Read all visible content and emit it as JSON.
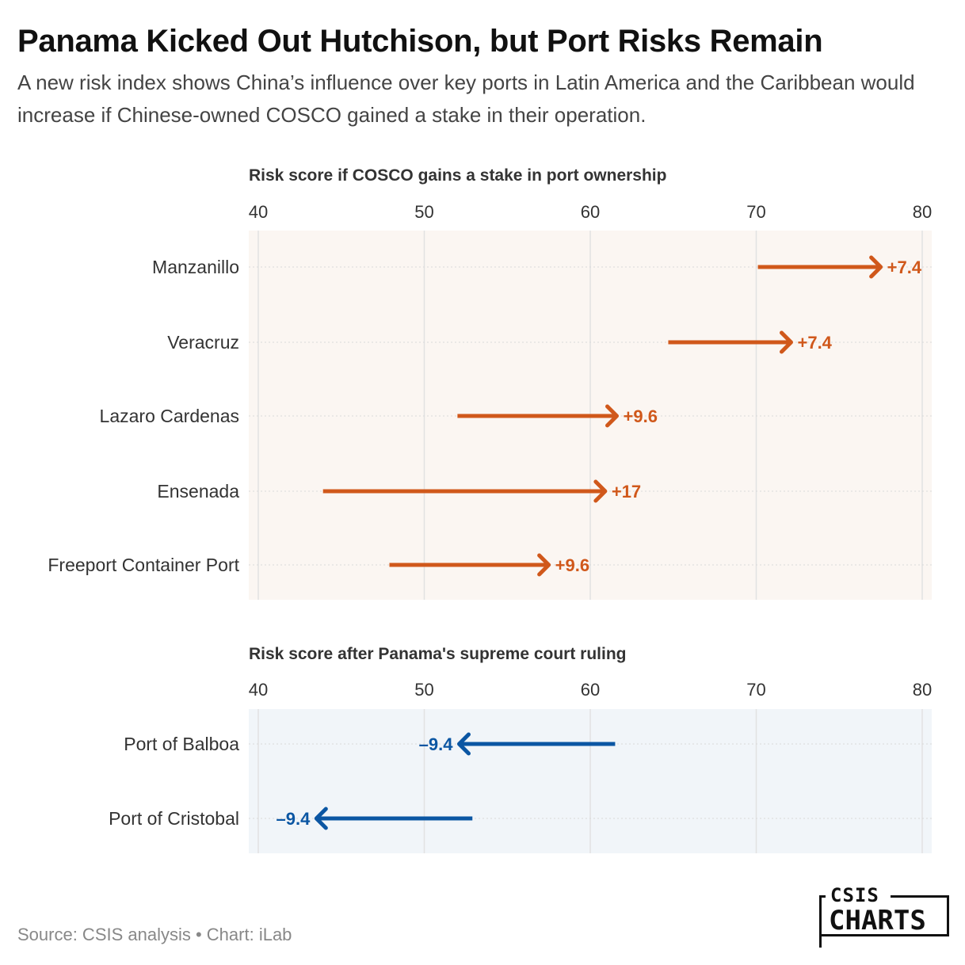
{
  "header": {
    "title": "Panama Kicked Out Hutchison, but Port Risks Remain",
    "subtitle": "A new risk index shows China’s influence over key ports in Latin America and the Caribbean would increase if Chinese-owned COSCO gained a stake in their operation."
  },
  "footer": {
    "source": "Source: CSIS analysis • Chart: iLab",
    "logo_top": "CSIS",
    "logo_bottom": "CHARTS"
  },
  "colors": {
    "increase": "#d0581b",
    "decrease": "#0b56a3",
    "panel1_bg": "#fbf6f2",
    "panel2_bg": "#f1f5f9"
  },
  "chart_data": [
    {
      "type": "arrow",
      "title": "Risk score if COSCO gains a stake in port ownership",
      "xlim": [
        40,
        80
      ],
      "ticks": [
        40,
        50,
        60,
        70,
        80
      ],
      "grid": true,
      "rows": [
        {
          "label": "Manzanillo",
          "from": 70.1,
          "to": 77.5,
          "change": "+7.4"
        },
        {
          "label": "Veracruz",
          "from": 64.7,
          "to": 72.1,
          "change": "+7.4"
        },
        {
          "label": "Lazaro Cardenas",
          "from": 52.0,
          "to": 61.6,
          "change": "+9.6"
        },
        {
          "label": "Ensenada",
          "from": 43.9,
          "to": 60.9,
          "change": "+17"
        },
        {
          "label": "Freeport Container Port",
          "from": 47.9,
          "to": 57.5,
          "change": "+9.6"
        }
      ]
    },
    {
      "type": "arrow",
      "title": "Risk score after Panama's supreme court ruling",
      "xlim": [
        40,
        80
      ],
      "ticks": [
        40,
        50,
        60,
        70,
        80
      ],
      "grid": true,
      "rows": [
        {
          "label": "Port of Balboa",
          "from": 61.5,
          "to": 52.1,
          "change": "–9.4"
        },
        {
          "label": "Port of Cristobal",
          "from": 52.9,
          "to": 43.5,
          "change": "–9.4"
        }
      ]
    }
  ]
}
